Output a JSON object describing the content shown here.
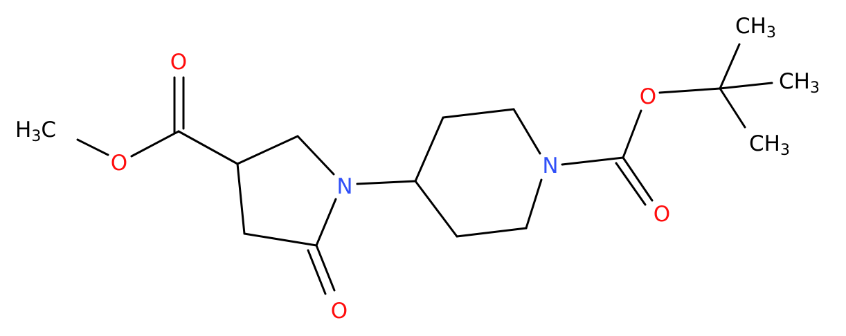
{
  "labels": [
    {
      "text": "O"
    },
    {
      "text": "O"
    },
    {
      "text": "H",
      "sub": "3",
      "tail": "C"
    },
    {
      "text": "N"
    },
    {
      "text": "O"
    },
    {
      "text": "N"
    },
    {
      "text": "O"
    },
    {
      "text": "O"
    },
    {
      "text": "CH",
      "sub": "3"
    },
    {
      "text": "CH",
      "sub": "3"
    },
    {
      "text": "CH",
      "sub": "3"
    }
  ]
}
